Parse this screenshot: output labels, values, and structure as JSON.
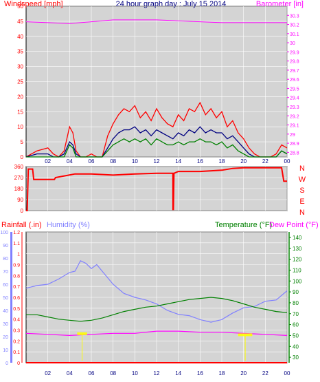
{
  "title": "24 hour graph day : July 15 2014",
  "colors": {
    "background": "#d4d4d4",
    "page": "#ffffff",
    "wind": "#ff0000",
    "wind_avg": "#000080",
    "wind_low": "#008000",
    "barometer": "#ff00ff",
    "direction": "#ff0000",
    "rainfall": "#ff0000",
    "humidity": "#8080ff",
    "temperature": "#008000",
    "dewpoint": "#ff00ff",
    "solar": "#ffff00"
  },
  "labels": {
    "wind": "Windspeed [mph]",
    "barometer": "Barometer [in]",
    "rainfall": "Rainfall (.in)",
    "humidity": "Humidity (%)",
    "temperature": "Temperature (°F)",
    "dewpoint": "Dew Point (°F)"
  },
  "chart_data": [
    {
      "type": "line",
      "title": "24 hour graph day : July 15 2014",
      "xlabel": "",
      "x_ticks": [
        "02",
        "04",
        "06",
        "08",
        "10",
        "12",
        "14",
        "16",
        "18",
        "20",
        "22",
        "00"
      ],
      "x_range": [
        0,
        24
      ],
      "ylabel": "Windspeed [mph]",
      "ylim": [
        0,
        50
      ],
      "y_ticks": [
        0,
        5,
        10,
        15,
        20,
        25,
        30,
        35,
        40,
        45,
        50
      ],
      "y2label": "Barometer [in]",
      "y2lim": [
        28.75,
        30.4
      ],
      "y2_ticks": [
        "28.8",
        "28.9",
        "29",
        "29.1",
        "29.2",
        "29.3",
        "29.4",
        "29.5",
        "29.6",
        "29.7",
        "29.8",
        "29.9",
        "30",
        "30.1",
        "30.2",
        "30.3"
      ],
      "series": [
        {
          "name": "wind_gust",
          "color": "#ff0000",
          "x": [
            0,
            1,
            2,
            2.5,
            3,
            3.5,
            4,
            4.3,
            4.6,
            5,
            5.5,
            6,
            6.5,
            7,
            7.5,
            8,
            8.5,
            9,
            9.5,
            10,
            10.5,
            11,
            11.5,
            12,
            12.5,
            13,
            13.5,
            14,
            14.5,
            15,
            15.5,
            16,
            16.5,
            17,
            17.5,
            18,
            18.5,
            19,
            19.5,
            20,
            20.5,
            21,
            21.5,
            22,
            22.5,
            23,
            23.5,
            24
          ],
          "values": [
            0,
            2,
            3,
            1,
            0,
            2,
            10,
            8,
            2,
            0,
            0,
            1,
            0,
            0,
            7,
            11,
            14,
            16,
            15,
            17,
            13,
            15,
            12,
            16,
            13,
            11,
            10,
            14,
            12,
            16,
            15,
            18,
            14,
            16,
            13,
            15,
            10,
            12,
            8,
            6,
            3,
            1,
            0,
            0,
            0,
            1,
            4,
            3
          ]
        },
        {
          "name": "wind_avg",
          "color": "#000080",
          "x": [
            0,
            1,
            2,
            2.5,
            3,
            3.5,
            4,
            4.3,
            4.6,
            5,
            5.5,
            6,
            6.5,
            7,
            7.5,
            8,
            8.5,
            9,
            9.5,
            10,
            10.5,
            11,
            11.5,
            12,
            12.5,
            13,
            13.5,
            14,
            14.5,
            15,
            15.5,
            16,
            16.5,
            17,
            17.5,
            18,
            18.5,
            19,
            19.5,
            20,
            20.5,
            21,
            21.5,
            22,
            22.5,
            23,
            23.5,
            24
          ],
          "values": [
            0,
            1,
            1,
            0,
            0,
            1,
            5,
            4,
            1,
            0,
            0,
            0,
            0,
            0,
            3,
            6,
            8,
            9,
            9,
            10,
            8,
            9,
            7,
            9,
            8,
            7,
            6,
            8,
            7,
            9,
            8,
            10,
            8,
            9,
            8,
            8,
            6,
            7,
            5,
            3,
            1,
            0,
            0,
            0,
            0,
            0,
            2,
            1
          ]
        },
        {
          "name": "wind_low",
          "color": "#008000",
          "x": [
            0,
            1,
            2,
            2.5,
            3,
            3.5,
            4,
            4.3,
            4.6,
            5,
            5.5,
            6,
            6.5,
            7,
            7.5,
            8,
            8.5,
            9,
            9.5,
            10,
            10.5,
            11,
            11.5,
            12,
            12.5,
            13,
            13.5,
            14,
            14.5,
            15,
            15.5,
            16,
            16.5,
            17,
            17.5,
            18,
            18.5,
            19,
            19.5,
            20,
            20.5,
            21,
            21.5,
            22,
            22.5,
            23,
            23.5,
            24
          ],
          "values": [
            0,
            0,
            0,
            0,
            0,
            0,
            4,
            3,
            0,
            0,
            0,
            0,
            0,
            0,
            2,
            4,
            5,
            6,
            5,
            6,
            5,
            6,
            4,
            6,
            5,
            4,
            4,
            5,
            4,
            5,
            5,
            6,
            5,
            5,
            4,
            5,
            3,
            4,
            2,
            1,
            0,
            0,
            0,
            0,
            0,
            0,
            2,
            1
          ]
        },
        {
          "name": "barometer",
          "color": "#ff00ff",
          "axis": "y2",
          "x": [
            0,
            2,
            4,
            6,
            8,
            10,
            12,
            14,
            16,
            18,
            20,
            22,
            24
          ],
          "values": [
            30.23,
            30.22,
            30.21,
            30.23,
            30.25,
            30.25,
            30.25,
            30.24,
            30.23,
            30.22,
            30.22,
            30.22,
            30.22
          ]
        }
      ]
    },
    {
      "type": "line",
      "title": "",
      "x_ticks": [],
      "x_range": [
        0,
        24
      ],
      "ylim": [
        0,
        360
      ],
      "y_ticks": [
        0,
        90,
        180,
        270,
        360
      ],
      "y2_labels": [
        "N",
        "W",
        "S",
        "E",
        "N"
      ],
      "series": [
        {
          "name": "direction",
          "color": "#ff0000",
          "x": [
            0,
            0.1,
            0.2,
            0.6,
            0.7,
            2.6,
            2.7,
            4.5,
            5,
            6,
            8,
            10,
            12,
            13.5,
            13.51,
            13.55,
            13.6,
            14,
            16,
            18,
            19,
            20,
            22,
            23.5,
            23.7,
            24
          ],
          "values": [
            0,
            0,
            340,
            340,
            255,
            255,
            270,
            300,
            300,
            300,
            290,
            300,
            305,
            305,
            10,
            10,
            305,
            320,
            320,
            330,
            345,
            350,
            350,
            350,
            240,
            240
          ]
        }
      ]
    },
    {
      "type": "line",
      "title": "",
      "x_ticks": [
        "02",
        "04",
        "06",
        "08",
        "10",
        "12",
        "14",
        "16",
        "18",
        "20",
        "22",
        "00"
      ],
      "x_range": [
        0,
        24
      ],
      "ylabel": "Rainfall (.in)",
      "ylim": [
        0,
        1.2
      ],
      "y_ticks": [
        "0",
        "0.1",
        "0.2",
        "0.3",
        "0.4",
        "0.5",
        "0.6",
        "0.7",
        "0.8",
        "0.9",
        "1",
        "1.1",
        "1.2"
      ],
      "y_humidity_ticks": [
        0,
        10,
        20,
        30,
        40,
        50,
        60,
        70,
        80,
        90,
        100
      ],
      "y2label": "Temperature (°F)",
      "y2_ticks": [
        30,
        40,
        50,
        60,
        70,
        80,
        90,
        100,
        110,
        120,
        130,
        140
      ],
      "y2lim": [
        25,
        145
      ],
      "series": [
        {
          "name": "rainfall",
          "color": "#ff0000",
          "x": [
            0,
            24
          ],
          "values": [
            0,
            0
          ]
        },
        {
          "name": "humidity",
          "color": "#8080ff",
          "x": [
            0,
            1,
            2,
            3,
            4,
            4.5,
            5,
            5.5,
            6,
            6.5,
            7,
            8,
            9,
            10,
            11,
            12,
            13,
            14,
            15,
            16,
            17,
            18,
            19,
            20,
            21,
            22,
            23,
            24
          ],
          "values": [
            57,
            59,
            60,
            64,
            69,
            70,
            78,
            76,
            72,
            75,
            70,
            60,
            53,
            50,
            48,
            45,
            40,
            37,
            36,
            33,
            31,
            33,
            38,
            42,
            43,
            47,
            48,
            55
          ]
        },
        {
          "name": "temperature",
          "color": "#008000",
          "axis": "y2",
          "x": [
            0,
            1,
            2,
            3,
            4,
            5,
            6,
            7,
            8,
            9,
            10,
            11,
            12,
            13,
            14,
            15,
            16,
            17,
            18,
            19,
            20,
            21,
            22,
            23,
            24
          ],
          "values": [
            69,
            69,
            67,
            65,
            64,
            63,
            64,
            66,
            69,
            72,
            74,
            76,
            77,
            79,
            81,
            83,
            84,
            85,
            84,
            82,
            79,
            76,
            74,
            72,
            71
          ]
        },
        {
          "name": "dewpoint",
          "color": "#ff00ff",
          "axis": "y2",
          "x": [
            0,
            2,
            4,
            6,
            8,
            10,
            12,
            14,
            16,
            18,
            20,
            22,
            24
          ],
          "values": [
            52,
            51,
            50,
            51,
            52,
            52,
            54,
            54,
            53,
            53,
            52,
            51,
            50
          ]
        },
        {
          "name": "solar",
          "color": "#ffff00",
          "bars": [
            [
              4.7,
              5.6,
              6
            ],
            [
              19.5,
              20.8,
              5
            ]
          ]
        }
      ]
    }
  ]
}
